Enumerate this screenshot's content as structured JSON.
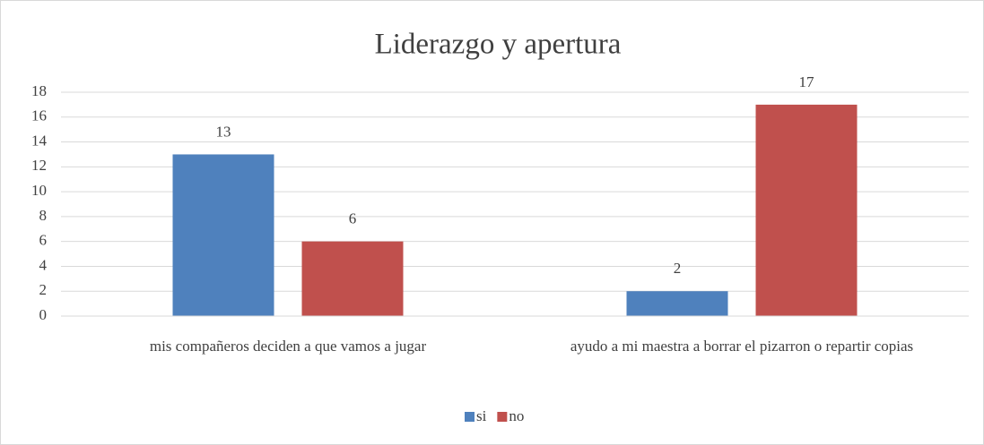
{
  "chart_data": {
    "type": "bar",
    "title": "Liderazgo y apertura",
    "categories": [
      "mis compañeros deciden a que vamos a jugar",
      "ayudo a mi maestra a borrar el pizarron o repartir copias"
    ],
    "series": [
      {
        "name": "si",
        "color": "#4f81bd",
        "values": [
          13,
          2
        ]
      },
      {
        "name": "no",
        "color": "#c0504d",
        "values": [
          6,
          17
        ]
      }
    ],
    "ylim": [
      0,
      18
    ],
    "yticks": [
      0,
      2,
      4,
      6,
      8,
      10,
      12,
      14,
      16,
      18
    ],
    "grid": true,
    "legend": "bottom"
  }
}
